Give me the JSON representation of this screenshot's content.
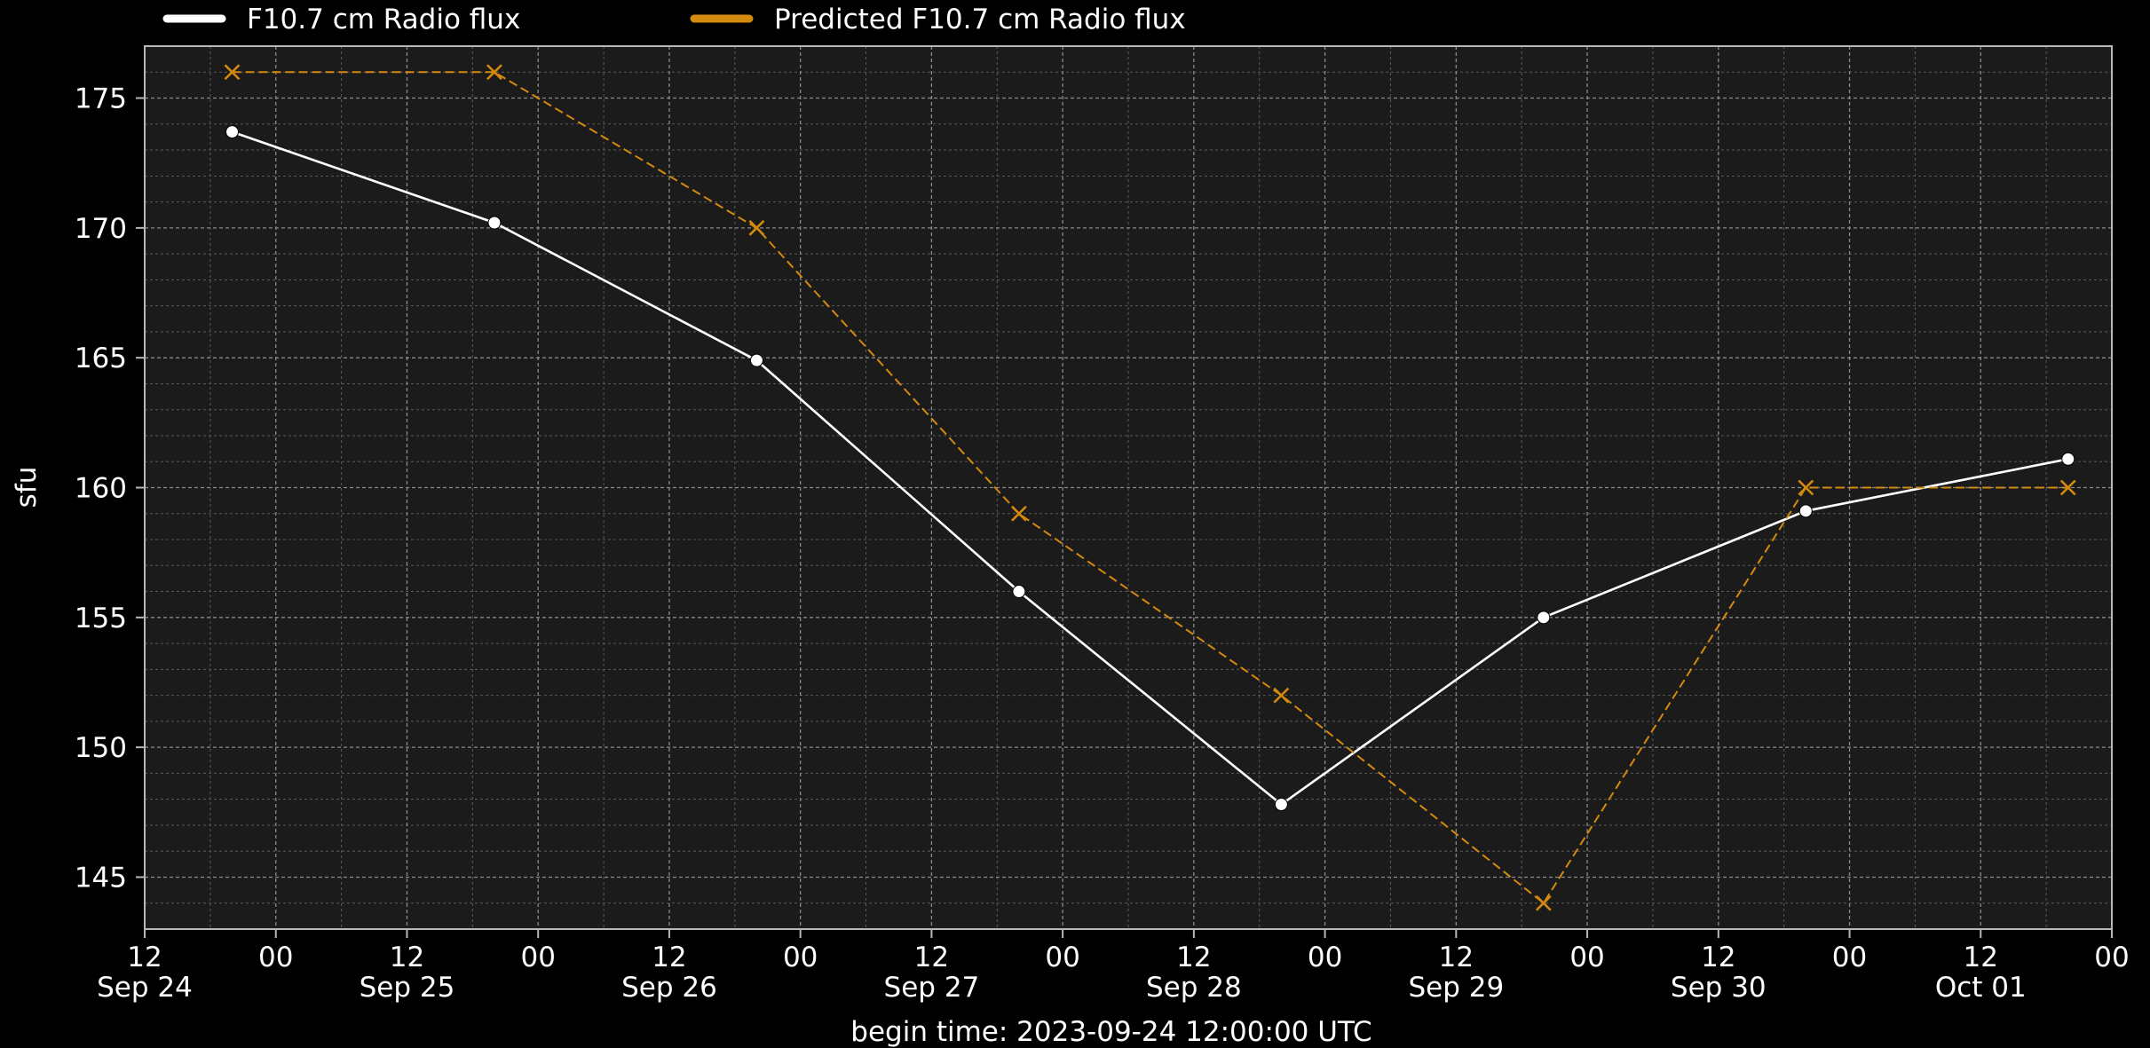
{
  "chart_data": {
    "type": "line",
    "ylabel": "sfu",
    "xlabel": "begin time: 2023-09-24 12:00:00 UTC",
    "ylim": [
      143,
      177
    ],
    "xlim": [
      "2023-09-24T12:00",
      "2023-10-02T00:00"
    ],
    "yticks": [
      145,
      150,
      155,
      160,
      165,
      170,
      175
    ],
    "y_minor_step": 1,
    "xticks": [
      {
        "t": "2023-09-24T12:00",
        "label": "12\nSep 24"
      },
      {
        "t": "2023-09-25T00:00",
        "label": "00"
      },
      {
        "t": "2023-09-25T12:00",
        "label": "12\nSep 25"
      },
      {
        "t": "2023-09-26T00:00",
        "label": "00"
      },
      {
        "t": "2023-09-26T12:00",
        "label": "12\nSep 26"
      },
      {
        "t": "2023-09-27T00:00",
        "label": "00"
      },
      {
        "t": "2023-09-27T12:00",
        "label": "12\nSep 27"
      },
      {
        "t": "2023-09-28T00:00",
        "label": "00"
      },
      {
        "t": "2023-09-28T12:00",
        "label": "12\nSep 28"
      },
      {
        "t": "2023-09-29T00:00",
        "label": "00"
      },
      {
        "t": "2023-09-29T12:00",
        "label": "12\nSep 29"
      },
      {
        "t": "2023-09-30T00:00",
        "label": "00"
      },
      {
        "t": "2023-09-30T12:00",
        "label": "12\nSep 30"
      },
      {
        "t": "2023-10-01T00:00",
        "label": "00"
      },
      {
        "t": "2023-10-01T12:00",
        "label": "12\nOct 01"
      },
      {
        "t": "2023-10-02T00:00",
        "label": "00"
      }
    ],
    "x_minor_step_hours": 6,
    "grid": true,
    "legend_position": "top",
    "series": [
      {
        "name": "F10.7 cm Radio flux",
        "color": "#ffffff",
        "style": "solid",
        "marker": "circle",
        "x": [
          "2023-09-24T20:00",
          "2023-09-25T20:00",
          "2023-09-26T20:00",
          "2023-09-27T20:00",
          "2023-09-28T20:00",
          "2023-09-29T20:00",
          "2023-09-30T20:00",
          "2023-10-01T20:00"
        ],
        "values": [
          173.7,
          170.2,
          164.9,
          156.0,
          147.8,
          155.0,
          159.1,
          161.1
        ]
      },
      {
        "name": "Predicted F10.7 cm Radio flux",
        "color": "#d4890f",
        "style": "dashed",
        "marker": "x",
        "x": [
          "2023-09-24T20:00",
          "2023-09-25T20:00",
          "2023-09-26T20:00",
          "2023-09-27T20:00",
          "2023-09-28T20:00",
          "2023-09-29T20:00",
          "2023-09-30T20:00",
          "2023-10-01T20:00"
        ],
        "values": [
          176,
          176,
          170,
          159,
          152,
          144,
          160,
          160
        ]
      }
    ],
    "colors": {
      "background": "#000000",
      "plot_background": "#1b1b1b",
      "axis": "#b8b8b8",
      "text": "#ffffff",
      "major_grid": "#8a8a8a",
      "minor_grid": "#5a5a5a"
    }
  }
}
